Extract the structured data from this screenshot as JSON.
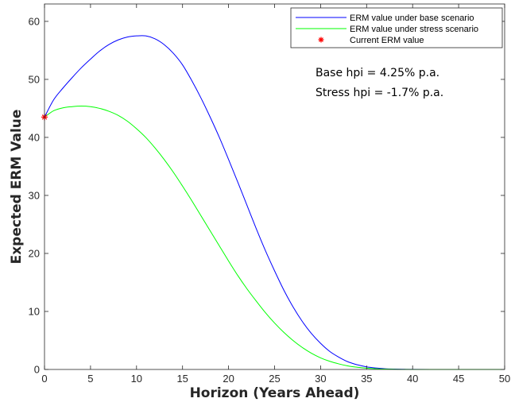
{
  "chart_data": {
    "type": "line",
    "xlabel": "Horizon (Years Ahead)",
    "ylabel": "Expected ERM Value",
    "xlim": [
      0,
      50
    ],
    "ylim": [
      0,
      63
    ],
    "xticks": [
      0,
      5,
      10,
      15,
      20,
      25,
      30,
      35,
      40,
      45,
      50
    ],
    "yticks": [
      0,
      10,
      20,
      30,
      40,
      50,
      60
    ],
    "grid": false,
    "legend_position": "top-right",
    "series": [
      {
        "name": "ERM value under base scenario",
        "color": "#0000ff",
        "x": [
          0,
          1,
          2,
          3,
          4,
          5,
          6,
          7,
          8,
          9,
          10,
          11,
          12,
          13,
          14,
          15,
          16,
          17,
          18,
          19,
          20,
          21,
          22,
          23,
          24,
          25,
          26,
          27,
          28,
          29,
          30,
          31,
          32,
          33,
          34,
          35,
          36,
          37,
          38,
          39,
          40,
          42,
          45,
          50
        ],
        "y": [
          43.5,
          46.5,
          48.5,
          50.3,
          52.0,
          53.5,
          54.9,
          56.0,
          56.8,
          57.3,
          57.5,
          57.5,
          57.0,
          56.0,
          54.5,
          52.5,
          49.8,
          46.8,
          43.5,
          40.0,
          36.2,
          32.3,
          28.3,
          24.3,
          20.5,
          17.0,
          13.7,
          10.8,
          8.3,
          6.2,
          4.5,
          3.1,
          2.1,
          1.3,
          0.8,
          0.45,
          0.25,
          0.12,
          0.06,
          0.03,
          0.01,
          0,
          0,
          0
        ]
      },
      {
        "name": "ERM value under stress scenario",
        "color": "#00ff00",
        "x": [
          0,
          1,
          2,
          3,
          4,
          5,
          6,
          7,
          8,
          9,
          10,
          11,
          12,
          13,
          14,
          15,
          16,
          17,
          18,
          19,
          20,
          21,
          22,
          23,
          24,
          25,
          26,
          27,
          28,
          29,
          30,
          31,
          32,
          33,
          34,
          35,
          36,
          37,
          38,
          40,
          45,
          50
        ],
        "y": [
          43.5,
          44.6,
          45.1,
          45.3,
          45.4,
          45.3,
          45.0,
          44.5,
          43.8,
          42.8,
          41.5,
          40.0,
          38.2,
          36.2,
          34.0,
          31.6,
          29.1,
          26.5,
          23.9,
          21.3,
          18.7,
          16.2,
          13.9,
          11.8,
          9.8,
          8.0,
          6.4,
          5.0,
          3.8,
          2.8,
          2.0,
          1.4,
          0.95,
          0.6,
          0.38,
          0.22,
          0.12,
          0.06,
          0.03,
          0,
          0,
          0
        ]
      }
    ],
    "markers": [
      {
        "name": "Current ERM value",
        "x": 0,
        "y": 43.5,
        "symbol": "asterisk",
        "color": "#ff0000"
      }
    ],
    "annotations": [
      "Base hpi = 4.25% p.a.",
      "Stress hpi = -1.7% p.a."
    ]
  }
}
